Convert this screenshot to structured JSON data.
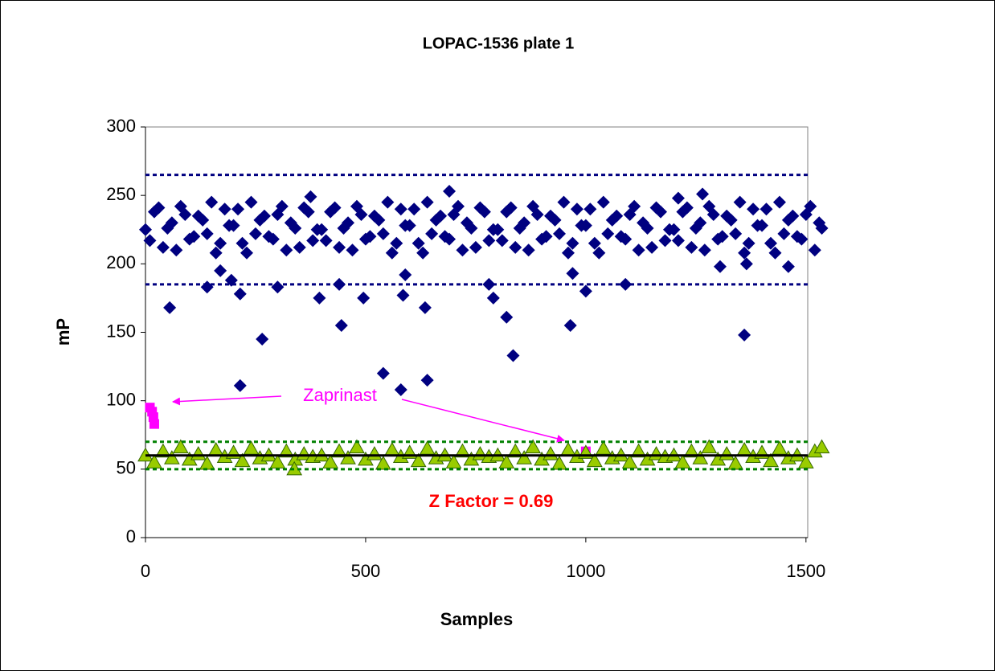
{
  "chart_data": {
    "type": "scatter",
    "title": "LOPAC-1536 plate 1",
    "x_label": "Samples",
    "y_label": "mP",
    "xlim": [
      0,
      1504
    ],
    "ylim": [
      0,
      300
    ],
    "xticks": [
      0,
      500,
      1000,
      1500
    ],
    "yticks": [
      0,
      50,
      100,
      150,
      200,
      250,
      300
    ],
    "grid": false,
    "annotations": [
      "Zaprinast",
      "Z Factor = 0.69"
    ],
    "reference_lines": [
      {
        "value": 265,
        "color": "#000080",
        "style": "dash"
      },
      {
        "value": 185,
        "color": "#000080",
        "style": "dash"
      },
      {
        "value": 70,
        "color": "#008000",
        "style": "dash"
      },
      {
        "value": 50,
        "color": "#008000",
        "style": "dash"
      },
      {
        "value": 60,
        "color": "#000000",
        "style": "solid"
      }
    ],
    "series": [
      {
        "marker": "diamond",
        "color": "#000080",
        "x": [
          0,
          20,
          40,
          60,
          80,
          100,
          120,
          140,
          160,
          180,
          200,
          220,
          240,
          260,
          280,
          300,
          320,
          340,
          360,
          380,
          400,
          420,
          440,
          460,
          480,
          500,
          520,
          540,
          560,
          580,
          600,
          620,
          640,
          660,
          680,
          700,
          720,
          740,
          760,
          780,
          800,
          820,
          840,
          860,
          880,
          900,
          920,
          940,
          960,
          980,
          1000,
          1020,
          1040,
          1060,
          1080,
          1100,
          1120,
          1140,
          1160,
          1180,
          1200,
          1220,
          1240,
          1260,
          1280,
          1300,
          1320,
          1340,
          1360,
          1380,
          1400,
          1420,
          1440,
          1460,
          1480,
          1500,
          1520,
          1536,
          10,
          30,
          50,
          70,
          90,
          110,
          130,
          150,
          170,
          190,
          210,
          230,
          250,
          270,
          290,
          310,
          330,
          350,
          370,
          390,
          410,
          430,
          450,
          470,
          490,
          510,
          530,
          550,
          570,
          590,
          610,
          630,
          650,
          670,
          690,
          710,
          730,
          750,
          770,
          790,
          810,
          830,
          850,
          870,
          890,
          910,
          930,
          950,
          970,
          990,
          1010,
          1030,
          1050,
          1070,
          1090,
          1110,
          1130,
          1150,
          1170,
          1190,
          1210,
          1230,
          1250,
          1270,
          1290,
          1310,
          1330,
          1350,
          1370,
          1390,
          1410,
          1430,
          1450,
          1470,
          1490,
          1510,
          1530,
          55,
          140,
          170,
          195,
          215,
          215,
          265,
          300,
          375,
          395,
          440,
          445,
          495,
          540,
          580,
          585,
          590,
          635,
          640,
          690,
          780,
          790,
          820,
          835,
          965,
          970,
          1000,
          1090,
          1210,
          1265,
          1305,
          1360,
          1365,
          1460
        ],
        "values": [
          225,
          238,
          212,
          230,
          242,
          218,
          235,
          222,
          208,
          240,
          228,
          215,
          245,
          232,
          220,
          236,
          210,
          226,
          241,
          217,
          225,
          238,
          212,
          230,
          242,
          218,
          235,
          222,
          208,
          240,
          228,
          215,
          245,
          232,
          220,
          236,
          210,
          226,
          241,
          217,
          225,
          238,
          212,
          230,
          242,
          218,
          235,
          222,
          208,
          240,
          228,
          215,
          245,
          232,
          220,
          236,
          210,
          226,
          241,
          217,
          225,
          238,
          212,
          230,
          242,
          218,
          235,
          222,
          208,
          240,
          228,
          215,
          245,
          232,
          220,
          236,
          210,
          226,
          217,
          241,
          226,
          210,
          236,
          220,
          232,
          245,
          215,
          228,
          240,
          208,
          222,
          235,
          218,
          242,
          230,
          212,
          238,
          225,
          217,
          241,
          226,
          210,
          236,
          220,
          232,
          245,
          215,
          228,
          240,
          208,
          222,
          235,
          218,
          242,
          230,
          212,
          238,
          225,
          217,
          241,
          226,
          210,
          236,
          220,
          232,
          245,
          215,
          228,
          240,
          208,
          222,
          235,
          218,
          242,
          230,
          212,
          238,
          225,
          217,
          241,
          226,
          210,
          236,
          220,
          232,
          245,
          215,
          228,
          240,
          208,
          222,
          235,
          218,
          242,
          230,
          168,
          183,
          195,
          188,
          178,
          111,
          145,
          183,
          249,
          175,
          185,
          155,
          175,
          120,
          108,
          177,
          192,
          168,
          115,
          253,
          185,
          175,
          161,
          133,
          155,
          193,
          180,
          185,
          248,
          251,
          198,
          148,
          200,
          198
        ]
      },
      {
        "marker": "square",
        "color": "#ff00ff",
        "x": [
          10,
          15,
          18,
          20,
          1000
        ],
        "values": [
          95,
          92,
          88,
          83,
          63
        ]
      },
      {
        "marker": "triangle",
        "color": "#99cc00",
        "x": [
          0,
          20,
          40,
          60,
          80,
          100,
          120,
          140,
          160,
          180,
          200,
          220,
          240,
          260,
          280,
          300,
          320,
          340,
          360,
          380,
          400,
          420,
          440,
          460,
          480,
          500,
          520,
          540,
          560,
          580,
          600,
          620,
          640,
          660,
          680,
          700,
          720,
          740,
          760,
          780,
          800,
          820,
          840,
          860,
          880,
          900,
          920,
          940,
          960,
          980,
          1000,
          1020,
          1040,
          1060,
          1080,
          1100,
          1120,
          1140,
          1160,
          1180,
          1200,
          1220,
          1240,
          1260,
          1280,
          1300,
          1320,
          1340,
          1360,
          1380,
          1400,
          1420,
          1440,
          1460,
          1480,
          1500,
          1520,
          338,
          1536
        ],
        "values": [
          60,
          55,
          63,
          58,
          66,
          57,
          61,
          54,
          64,
          59,
          62,
          56,
          65,
          58,
          60,
          55,
          63,
          57,
          61,
          59,
          60,
          55,
          63,
          58,
          66,
          57,
          61,
          54,
          64,
          59,
          62,
          56,
          65,
          58,
          60,
          55,
          63,
          57,
          61,
          59,
          60,
          55,
          63,
          58,
          66,
          57,
          61,
          54,
          64,
          59,
          62,
          56,
          65,
          58,
          60,
          55,
          63,
          57,
          61,
          59,
          60,
          55,
          63,
          58,
          66,
          57,
          61,
          54,
          64,
          59,
          62,
          56,
          65,
          58,
          60,
          55,
          63,
          50,
          66
        ]
      }
    ]
  }
}
